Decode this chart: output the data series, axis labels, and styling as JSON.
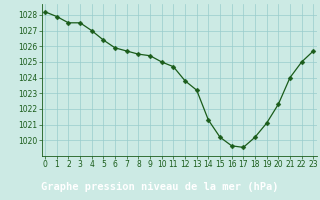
{
  "x": [
    0,
    1,
    2,
    3,
    4,
    5,
    6,
    7,
    8,
    9,
    10,
    11,
    12,
    13,
    14,
    15,
    16,
    17,
    18,
    19,
    20,
    21,
    22,
    23
  ],
  "y": [
    1028.2,
    1027.9,
    1027.5,
    1027.5,
    1027.0,
    1026.4,
    1025.9,
    1025.7,
    1025.5,
    1025.4,
    1025.0,
    1024.7,
    1023.8,
    1023.2,
    1021.3,
    1020.2,
    1019.65,
    1019.55,
    1020.2,
    1021.1,
    1022.3,
    1024.0,
    1025.0,
    1025.7
  ],
  "line_color": "#1a5c1a",
  "marker": "D",
  "marker_size": 2.5,
  "bg_color": "#cceae4",
  "xlabel_bg_color": "#2d6b3c",
  "grid_color": "#99cccc",
  "xlabel": "Graphe pression niveau de la mer (hPa)",
  "xlim": [
    -0.3,
    23.3
  ],
  "ylim": [
    1019.0,
    1028.7
  ],
  "yticks": [
    1020,
    1021,
    1022,
    1023,
    1024,
    1025,
    1026,
    1027,
    1028
  ],
  "xticks": [
    0,
    1,
    2,
    3,
    4,
    5,
    6,
    7,
    8,
    9,
    10,
    11,
    12,
    13,
    14,
    15,
    16,
    17,
    18,
    19,
    20,
    21,
    22,
    23
  ],
  "tick_fontsize": 5.5,
  "xlabel_fontsize": 7.5,
  "xlabel_fontweight": "bold",
  "xlabel_color": "#ffffff",
  "tick_color": "#1a5c1a"
}
